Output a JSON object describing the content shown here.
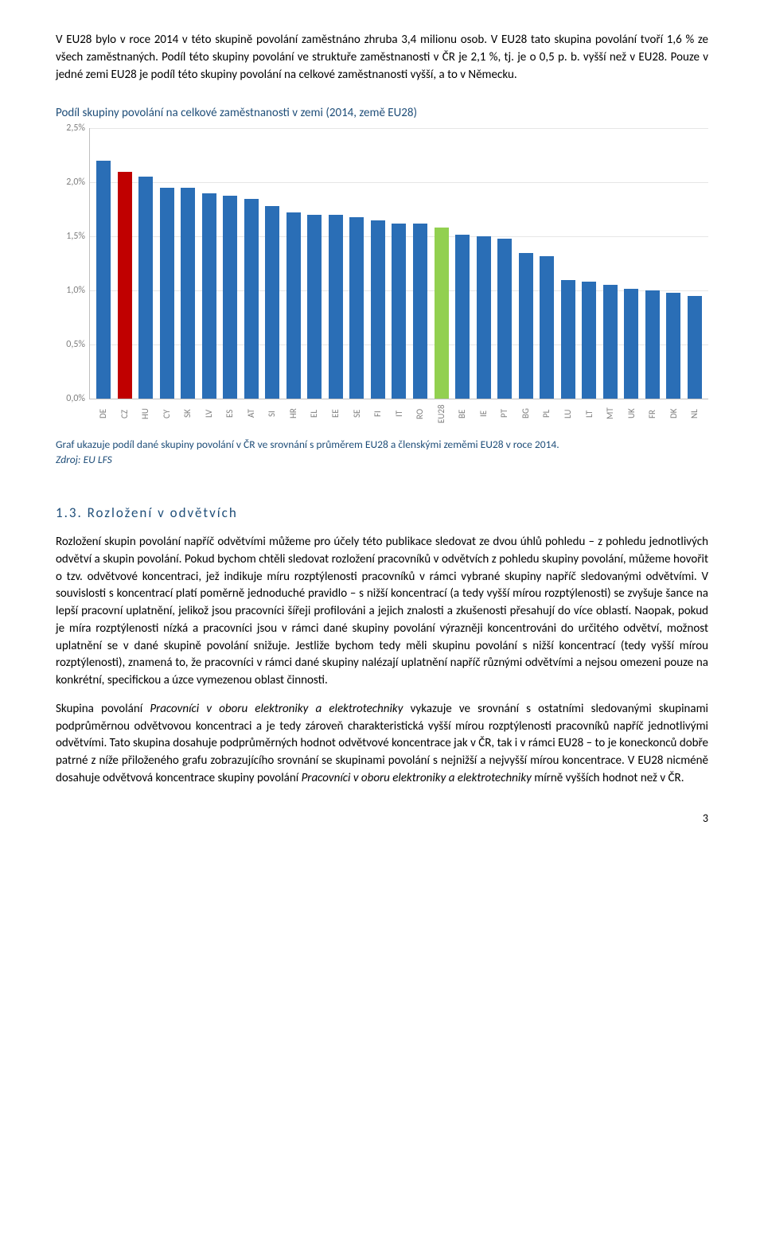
{
  "intro_para": "V EU28 bylo v roce 2014 v této skupině povolání zaměstnáno zhruba 3,4 milionu osob. V EU28 tato skupina povolání tvoří 1,6 % ze všech zaměstnaných. Podíl této skupiny povolání ve struktuře zaměstnanosti v ČR je 2,1 %, tj. je o 0,5 p. b. vyšší než v EU28. Pouze v jedné zemi EU28 je podíl této skupiny povolání na celkové zaměstnanosti vyšší, a to v Německu.",
  "chart": {
    "title": "Podíl skupiny povolání na celkové zaměstnanosti v zemi (2014, země EU28)",
    "type": "bar",
    "ylim": [
      0,
      2.5
    ],
    "ytick_step": 0.5,
    "y_labels": [
      "0,0%",
      "0,5%",
      "1,0%",
      "1,5%",
      "2,0%",
      "2,5%"
    ],
    "background_color": "#ffffff",
    "axis_color": "#bfbfbf",
    "grid_color": "#e6e6e6",
    "label_color": "#7f7f7f",
    "tick_fontsize": 12,
    "xlabel_fontsize": 11,
    "bar_width": 0.68,
    "default_bar_color": "#2a6eb6",
    "highlight_colors": {
      "CZ": "#c00000",
      "EU28": "#92d050"
    },
    "categories": [
      "DE",
      "CZ",
      "HU",
      "CY",
      "SK",
      "LV",
      "ES",
      "AT",
      "SI",
      "HR",
      "EL",
      "EE",
      "SE",
      "FI",
      "IT",
      "RO",
      "EU28",
      "BE",
      "IE",
      "PT",
      "BG",
      "PL",
      "LU",
      "LT",
      "MT",
      "UK",
      "FR",
      "DK",
      "NL"
    ],
    "values": [
      2.2,
      2.1,
      2.05,
      1.95,
      1.95,
      1.9,
      1.88,
      1.85,
      1.78,
      1.72,
      1.7,
      1.7,
      1.68,
      1.65,
      1.62,
      1.62,
      1.58,
      1.52,
      1.5,
      1.48,
      1.35,
      1.32,
      1.1,
      1.08,
      1.05,
      1.02,
      1.0,
      0.98,
      0.95
    ]
  },
  "chart_note_line1": "Graf ukazuje podíl dané skupiny povolání v ČR ve srovnání s průměrem EU28 a členskými zeměmi EU28 v roce 2014.",
  "chart_note_source": "Zdroj: EU LFS",
  "section_heading": "1.3. Rozložení v odvětvích",
  "body_para1": "Rozložení skupin povolání napříč odvětvími můžeme pro účely této publikace sledovat ze dvou úhlů pohledu – z pohledu jednotlivých odvětví a skupin povolání. Pokud bychom chtěli sledovat rozložení pracovníků v odvětvích z pohledu skupiny povolání, můžeme hovořit o tzv. odvětvové koncentraci, jež indikuje míru rozptýlenosti pracovníků v rámci vybrané skupiny napříč sledovanými odvětvími. V souvislosti s koncentrací platí poměrně jednoduché pravidlo – s nižší koncentrací (a tedy vyšší mírou rozptýlenosti) se zvyšuje šance na lepší pracovní uplatnění, jelikož jsou pracovníci šířeji profilováni a jejich znalosti a zkušenosti přesahují do více oblastí. Naopak, pokud je míra rozptýlenosti nízká a pracovníci jsou v rámci dané skupiny povolání výrazněji koncentrováni do určitého odvětví, možnost uplatnění se v dané skupině povolání snižuje. Jestliže bychom tedy měli skupinu povolání s nižší koncentrací (tedy vyšší mírou rozptýlenosti), znamená to, že pracovníci v rámci dané skupiny nalézají uplatnění napříč různými odvětvími a nejsou omezeni pouze na konkrétní, specifickou a úzce vymezenou oblast činnosti.",
  "body_para2_pre": "Skupina povolání ",
  "body_para2_em1": "Pracovníci v oboru elektroniky a elektrotechniky",
  "body_para2_mid": " vykazuje ve srovnání s ostatními sledovanými skupinami podprůměrnou odvětvovou koncentraci a je tedy zároveň charakteristická vyšší mírou rozptýlenosti pracovníků napříč jednotlivými odvětvími. Tato skupina dosahuje podprůměrných hodnot odvětvové koncentrace jak v ČR, tak i v rámci EU28 – to je koneckonců dobře patrné z níže přiloženého grafu zobrazujícího srovnání se skupinami povolání s nejnižší a nejvyšší mírou koncentrace. V EU28 nicméně dosahuje odvětvová koncentrace skupiny povolání ",
  "body_para2_em2": "Pracovníci v oboru elektroniky a elektrotechniky",
  "body_para2_post": " mírně vyšších hodnot než v ČR.",
  "page_number": "3"
}
